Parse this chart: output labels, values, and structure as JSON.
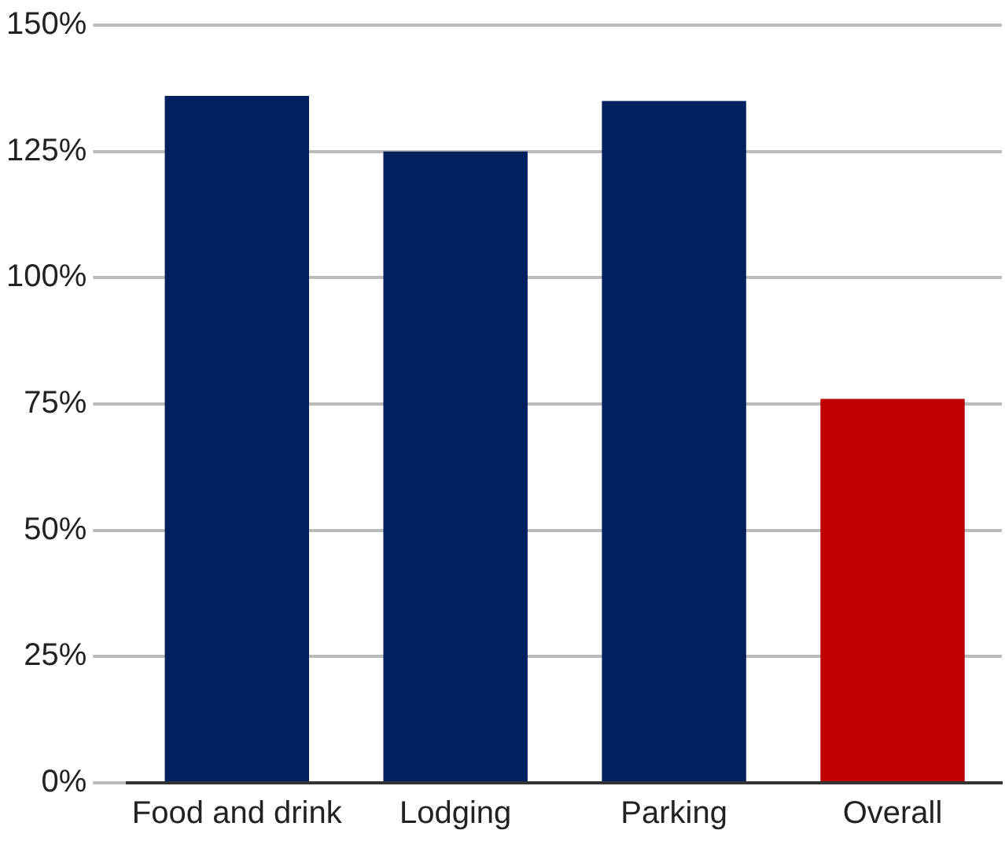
{
  "chart_data": {
    "type": "bar",
    "categories": [
      "Food and drink",
      "Lodging",
      "Parking",
      "Overall"
    ],
    "values": [
      136,
      125,
      135,
      76
    ],
    "colors": [
      "#002060",
      "#002060",
      "#002060",
      "#c00000"
    ],
    "ylim": [
      0,
      150
    ],
    "yticks": [
      {
        "value": 0,
        "label": "0%"
      },
      {
        "value": 25,
        "label": "25%"
      },
      {
        "value": 50,
        "label": "50%"
      },
      {
        "value": 75,
        "label": "75%"
      },
      {
        "value": 100,
        "label": "100%"
      },
      {
        "value": 125,
        "label": "125%"
      },
      {
        "value": 150,
        "label": "150%"
      }
    ],
    "grid": "y"
  }
}
